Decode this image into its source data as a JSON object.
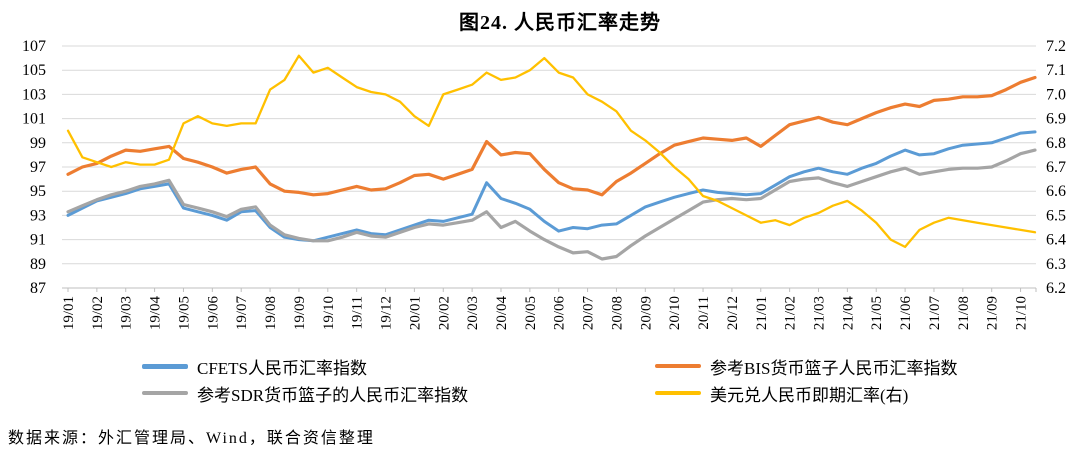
{
  "page": {
    "title": "图24. 人民币汇率走势",
    "source": "数据来源：外汇管理局、Wind，联合资信整理"
  },
  "colors": {
    "cfets_blue": "#5B9BD5",
    "bis_orange": "#ED7D31",
    "sdr_gray": "#A5A5A5",
    "usdcny_yellow": "#FFC000",
    "gridline": "#D9D9D9",
    "axis_line": "#BFBFBF",
    "text": "#000000"
  },
  "legend": {
    "items": [
      {
        "label": "CFETS人民币汇率指数",
        "color": "#5B9BD5"
      },
      {
        "label": "参考BIS货币篮子人民币汇率指数",
        "color": "#ED7D31"
      },
      {
        "label": "参考SDR货币篮子的人民币汇率指数",
        "color": "#A5A5A5"
      },
      {
        "label": "美元兑人民币即期汇率(右)",
        "color": "#FFC000"
      }
    ]
  },
  "chart_data": {
    "type": "line",
    "title": "图24. 人民币汇率走势",
    "grid": true,
    "legend_position": "bottom",
    "x_resolution": "two points per month (month start / mid-month), first point 19/01",
    "categories": [
      "19/01",
      "19/02",
      "19/03",
      "19/04",
      "19/05",
      "19/06",
      "19/07",
      "19/08",
      "19/09",
      "19/10",
      "19/11",
      "19/12",
      "20/01",
      "20/02",
      "20/03",
      "20/04",
      "20/05",
      "20/06",
      "20/07",
      "20/08",
      "20/09",
      "20/10",
      "20/11",
      "20/12",
      "21/01",
      "21/02",
      "21/03",
      "21/04",
      "21/05",
      "21/06",
      "21/07",
      "21/08",
      "21/09",
      "21/10"
    ],
    "x_tick_label_rotation": -90,
    "left_axis": {
      "min": 87,
      "max": 107,
      "step": 2,
      "ticks": [
        87,
        89,
        91,
        93,
        95,
        97,
        99,
        101,
        103,
        105,
        107
      ]
    },
    "right_axis": {
      "min": 6.2,
      "max": 7.2,
      "step": 0.1,
      "ticks": [
        6.2,
        6.3,
        6.4,
        6.5,
        6.6,
        6.7,
        6.8,
        6.9,
        7.0,
        7.1,
        7.2
      ]
    },
    "series": [
      {
        "name": "CFETS人民币汇率指数",
        "axis": "left",
        "color": "#5B9BD5",
        "values": [
          93.0,
          93.6,
          94.2,
          94.5,
          94.8,
          95.2,
          95.4,
          95.6,
          93.6,
          93.3,
          93.0,
          92.6,
          93.3,
          93.4,
          92.0,
          91.2,
          91.0,
          90.9,
          91.2,
          91.5,
          91.8,
          91.5,
          91.4,
          91.8,
          92.2,
          92.6,
          92.5,
          92.8,
          93.1,
          95.7,
          94.4,
          94.0,
          93.5,
          92.5,
          91.7,
          92.0,
          91.9,
          92.2,
          92.3,
          93.0,
          93.7,
          94.1,
          94.5,
          94.8,
          95.1,
          94.9,
          94.8,
          94.7,
          94.8,
          95.5,
          96.2,
          96.6,
          96.9,
          96.6,
          96.4,
          96.9,
          97.3,
          97.9,
          98.4,
          98.0,
          98.1,
          98.5,
          98.8,
          98.9,
          99.0,
          99.4,
          99.8,
          99.9
        ]
      },
      {
        "name": "参考BIS货币篮子人民币汇率指数",
        "axis": "left",
        "color": "#ED7D31",
        "values": [
          96.4,
          97.0,
          97.3,
          97.9,
          98.4,
          98.3,
          98.5,
          98.7,
          97.7,
          97.4,
          97.0,
          96.5,
          96.8,
          97.0,
          95.6,
          95.0,
          94.9,
          94.7,
          94.8,
          95.1,
          95.4,
          95.1,
          95.2,
          95.7,
          96.3,
          96.4,
          96.0,
          96.4,
          96.8,
          99.1,
          98.0,
          98.2,
          98.1,
          96.8,
          95.7,
          95.2,
          95.1,
          94.7,
          95.8,
          96.5,
          97.3,
          98.1,
          98.8,
          99.1,
          99.4,
          99.3,
          99.2,
          99.4,
          98.7,
          99.6,
          100.5,
          100.8,
          101.1,
          100.7,
          100.5,
          101.0,
          101.5,
          101.9,
          102.2,
          102.0,
          102.5,
          102.6,
          102.8,
          102.8,
          102.9,
          103.4,
          104.0,
          104.4
        ]
      },
      {
        "name": "参考SDR货币篮子的人民币汇率指数",
        "axis": "left",
        "color": "#A5A5A5",
        "values": [
          93.3,
          93.8,
          94.3,
          94.7,
          95.0,
          95.4,
          95.6,
          95.9,
          93.9,
          93.6,
          93.3,
          92.9,
          93.5,
          93.7,
          92.2,
          91.4,
          91.1,
          90.9,
          90.9,
          91.2,
          91.6,
          91.3,
          91.2,
          91.6,
          92.0,
          92.3,
          92.2,
          92.4,
          92.6,
          93.3,
          92.0,
          92.5,
          91.7,
          91.0,
          90.4,
          89.9,
          90.0,
          89.4,
          89.6,
          90.5,
          91.3,
          92.0,
          92.7,
          93.4,
          94.1,
          94.3,
          94.4,
          94.3,
          94.4,
          95.1,
          95.8,
          96.0,
          96.1,
          95.7,
          95.4,
          95.8,
          96.2,
          96.6,
          96.9,
          96.4,
          96.6,
          96.8,
          96.9,
          96.9,
          97.0,
          97.5,
          98.1,
          98.4
        ]
      },
      {
        "name": "美元兑人民币即期汇率(右)",
        "axis": "right",
        "color": "#FFC000",
        "values": [
          6.85,
          6.74,
          6.72,
          6.7,
          6.72,
          6.71,
          6.71,
          6.73,
          6.88,
          6.91,
          6.88,
          6.87,
          6.88,
          6.88,
          7.02,
          7.06,
          7.16,
          7.09,
          7.11,
          7.07,
          7.03,
          7.01,
          7.0,
          6.97,
          6.91,
          6.87,
          7.0,
          7.02,
          7.04,
          7.09,
          7.06,
          7.07,
          7.1,
          7.15,
          7.09,
          7.07,
          7.0,
          6.97,
          6.93,
          6.85,
          6.81,
          6.76,
          6.7,
          6.65,
          6.58,
          6.56,
          6.53,
          6.5,
          6.47,
          6.48,
          6.46,
          6.49,
          6.51,
          6.54,
          6.56,
          6.52,
          6.47,
          6.4,
          6.37,
          6.44,
          6.47,
          6.49,
          6.48,
          6.47,
          6.46,
          6.45,
          6.44,
          6.43
        ]
      }
    ]
  }
}
